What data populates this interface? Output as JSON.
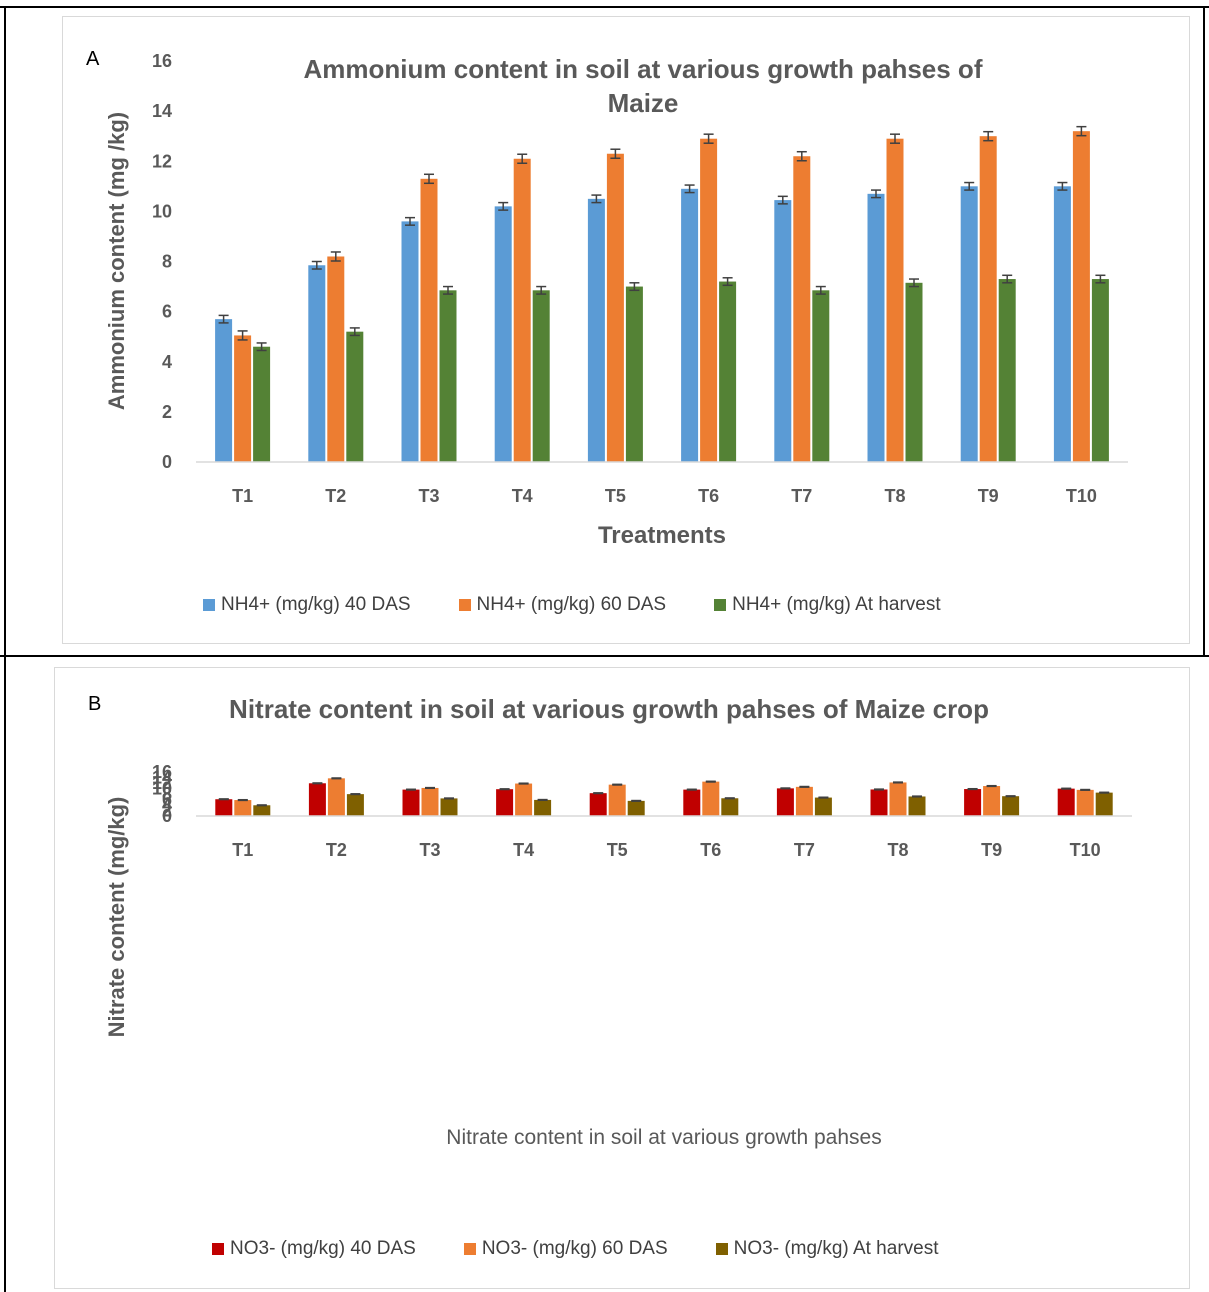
{
  "chart_data": [
    {
      "type": "bar",
      "panel_label": "A",
      "title": "Ammonium content in soil at various growth pahses of Maize crop",
      "xlabel": "Treatments",
      "ylabel": "Ammonium content (mg /kg)",
      "ylim": [
        0,
        16
      ],
      "yticks": [
        0,
        2,
        4,
        6,
        8,
        10,
        12,
        14,
        16
      ],
      "grid": false,
      "legend_position": "bottom",
      "error_bars": true,
      "categories": [
        "T1",
        "T2",
        "T3",
        "T4",
        "T5",
        "T6",
        "T7",
        "T8",
        "T9",
        "T10"
      ],
      "series": [
        {
          "name": "NH4+ (mg/kg) 40 DAS",
          "color": "#5b9bd5",
          "values": [
            5.7,
            7.85,
            9.6,
            10.2,
            10.5,
            10.9,
            10.45,
            10.7,
            11.0,
            11.0
          ],
          "errors": [
            0.15,
            0.15,
            0.15,
            0.15,
            0.15,
            0.15,
            0.15,
            0.15,
            0.15,
            0.15
          ]
        },
        {
          "name": "NH4+ (mg/kg) 60 DAS",
          "color": "#ed7d31",
          "values": [
            5.05,
            8.2,
            11.3,
            12.1,
            12.3,
            12.9,
            12.2,
            12.9,
            13.0,
            13.2
          ],
          "errors": [
            0.18,
            0.18,
            0.18,
            0.18,
            0.18,
            0.18,
            0.18,
            0.18,
            0.18,
            0.18
          ]
        },
        {
          "name": "NH4+ (mg/kg) At harvest",
          "color": "#548235",
          "values": [
            4.6,
            5.2,
            6.85,
            6.85,
            7.0,
            7.2,
            6.85,
            7.15,
            7.3,
            7.3
          ],
          "errors": [
            0.15,
            0.15,
            0.15,
            0.15,
            0.15,
            0.15,
            0.15,
            0.15,
            0.15,
            0.15
          ]
        }
      ]
    },
    {
      "type": "bar",
      "panel_label": "B",
      "title": "Nitrate content in soil at various growth pahses of Maize crop",
      "xlabel": "Nitrate content in soil at various growth pahses",
      "ylabel": "Nitrate content (mg/kg)",
      "ylim": [
        0,
        16
      ],
      "yticks": [
        0,
        2,
        4,
        6,
        8,
        10,
        12,
        14,
        16
      ],
      "grid": false,
      "legend_position": "bottom",
      "error_bars": true,
      "categories": [
        "T1",
        "T2",
        "T3",
        "T4",
        "T5",
        "T6",
        "T7",
        "T8",
        "T9",
        "T10"
      ],
      "series": [
        {
          "name": "NO3- (mg/kg) 40 DAS",
          "color": "#c00000",
          "values": [
            6.1,
            11.9,
            9.6,
            9.75,
            8.3,
            9.6,
            10.05,
            9.65,
            9.8,
            9.95
          ],
          "errors": [
            0.12,
            0.12,
            0.12,
            0.12,
            0.12,
            0.12,
            0.12,
            0.12,
            0.12,
            0.12
          ]
        },
        {
          "name": "NO3- (mg/kg) 60 DAS",
          "color": "#ed7d31",
          "values": [
            5.8,
            13.7,
            10.2,
            11.8,
            11.4,
            12.5,
            10.6,
            12.2,
            10.9,
            9.5
          ],
          "errors": [
            0.12,
            0.12,
            0.12,
            0.12,
            0.12,
            0.12,
            0.12,
            0.12,
            0.12,
            0.12
          ]
        },
        {
          "name": "NO3- (mg/kg) At harvest",
          "color": "#7f6000",
          "values": [
            3.9,
            7.95,
            6.4,
            5.85,
            5.5,
            6.45,
            6.7,
            7.1,
            7.2,
            8.5
          ],
          "errors": [
            0.12,
            0.12,
            0.12,
            0.12,
            0.12,
            0.12,
            0.12,
            0.12,
            0.12,
            0.12
          ]
        }
      ]
    }
  ]
}
